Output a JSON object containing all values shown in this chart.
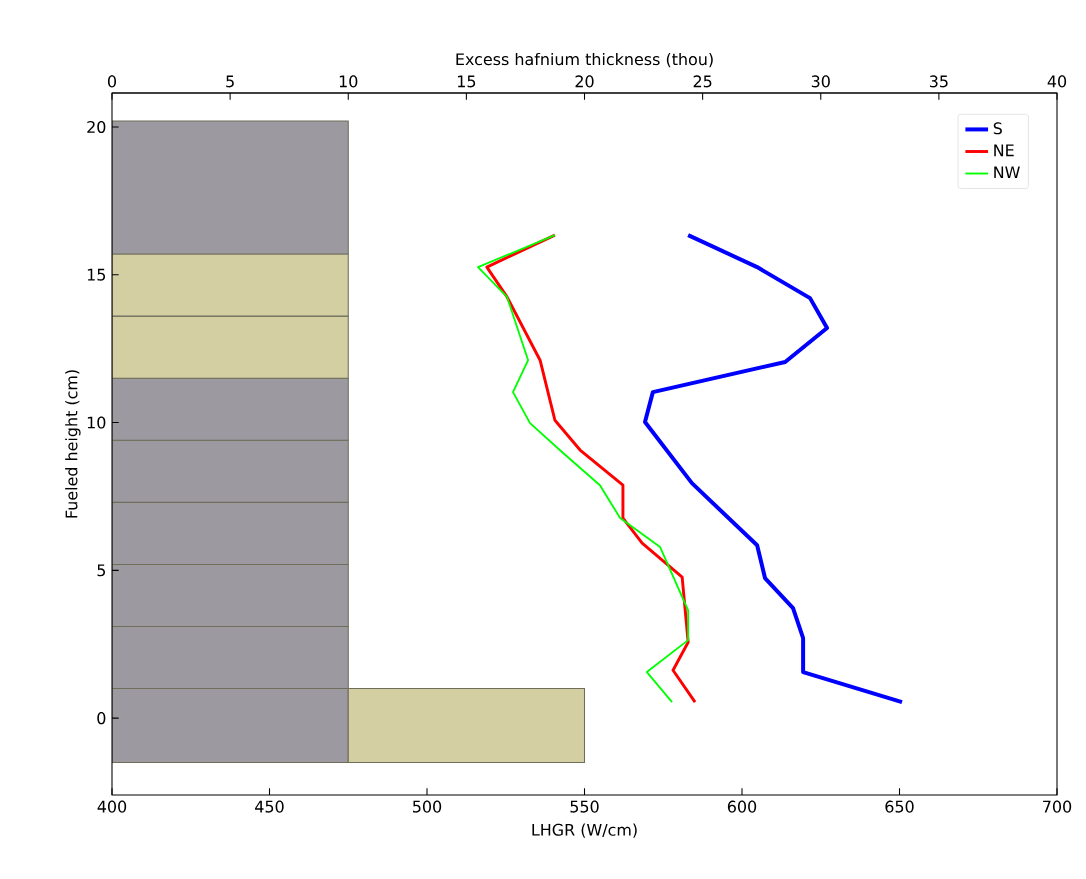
{
  "chart_data": {
    "type": "line",
    "xlabel": "LHGR (W/cm)",
    "ylabel": "Fueled height (cm)",
    "x2label": "Excess hafnium thickness (thou)",
    "xlim": [
      400,
      700
    ],
    "xticks": [
      400,
      450,
      500,
      550,
      600,
      650,
      700
    ],
    "x2lim": [
      0,
      40
    ],
    "x2ticks": [
      0,
      5,
      10,
      15,
      20,
      25,
      30,
      35,
      40
    ],
    "ylim": [
      -2.6,
      21.15
    ],
    "yticks": [
      0,
      5,
      10,
      15,
      20
    ],
    "legend": "top right",
    "series": [
      {
        "type": "bar",
        "axis": "x2",
        "x": [
          5,
          15
        ],
        "base": [
          -1.5,
          -1.5
        ],
        "values": [
          2.5,
          2.5
        ],
        "colors": [
          "#9d99a1",
          "#d3cfa2"
        ]
      },
      {
        "type": "bar",
        "axis": "x2",
        "x": [
          5
        ],
        "base": [
          1.0
        ],
        "values": [
          2.1
        ],
        "colors": [
          "#9d99a1"
        ]
      },
      {
        "type": "bar",
        "axis": "x2",
        "x": [
          5
        ],
        "base": [
          3.1
        ],
        "values": [
          2.1
        ],
        "colors": [
          "#9d99a1"
        ]
      },
      {
        "type": "bar",
        "axis": "x2",
        "x": [
          5
        ],
        "base": [
          5.2
        ],
        "values": [
          2.1
        ],
        "colors": [
          "#9d99a1"
        ]
      },
      {
        "type": "bar",
        "axis": "x2",
        "x": [
          5
        ],
        "base": [
          7.3
        ],
        "values": [
          2.1
        ],
        "colors": [
          "#9d99a1"
        ]
      },
      {
        "type": "bar",
        "axis": "x2",
        "x": [
          5
        ],
        "base": [
          9.4
        ],
        "values": [
          2.1
        ],
        "colors": [
          "#9d99a1"
        ]
      },
      {
        "type": "bar",
        "axis": "x2",
        "x": [
          5
        ],
        "base": [
          11.5
        ],
        "values": [
          2.1
        ],
        "colors": [
          "#d3cfa2"
        ]
      },
      {
        "type": "bar",
        "axis": "x2",
        "x": [
          5
        ],
        "base": [
          13.6
        ],
        "values": [
          2.1
        ],
        "colors": [
          "#d3cfa2"
        ]
      },
      {
        "type": "bar",
        "axis": "x2",
        "x": [
          5
        ],
        "base": [
          15.7
        ],
        "values": [
          4.5
        ],
        "colors": [
          "#9d99a1"
        ]
      },
      {
        "name": "S",
        "color": "#0000ff",
        "x": [
          582.9,
          604.8,
          621.6,
          627.0,
          613.7,
          571.7,
          569.2,
          584.1,
          604.8,
          607.3,
          616.2,
          619.4,
          619.4,
          650.8
        ],
        "values": [
          16.34,
          15.26,
          14.21,
          13.2,
          12.05,
          11.03,
          10.02,
          7.95,
          5.85,
          4.74,
          3.72,
          2.71,
          1.56,
          0.54
        ]
      },
      {
        "name": "NE",
        "color": "#ff0000",
        "x": [
          540.6,
          519.0,
          525.4,
          535.9,
          540.6,
          548.6,
          562.2,
          562.2,
          568.3,
          581.0,
          582.9,
          578.1,
          585.1
        ],
        "values": [
          16.34,
          15.26,
          14.25,
          12.11,
          10.08,
          9.07,
          7.88,
          6.77,
          5.92,
          4.77,
          2.57,
          1.62,
          0.54
        ]
      },
      {
        "name": "NW",
        "color": "#00ff00",
        "x": [
          540.6,
          516.2,
          525.4,
          532.1,
          527.3,
          532.7,
          543.2,
          554.9,
          561.3,
          574.0,
          582.9,
          582.9,
          569.8,
          577.8
        ],
        "values": [
          16.34,
          15.26,
          14.25,
          12.11,
          11.03,
          9.98,
          8.97,
          7.88,
          6.77,
          5.79,
          3.65,
          2.64,
          1.56,
          0.54
        ]
      }
    ]
  }
}
